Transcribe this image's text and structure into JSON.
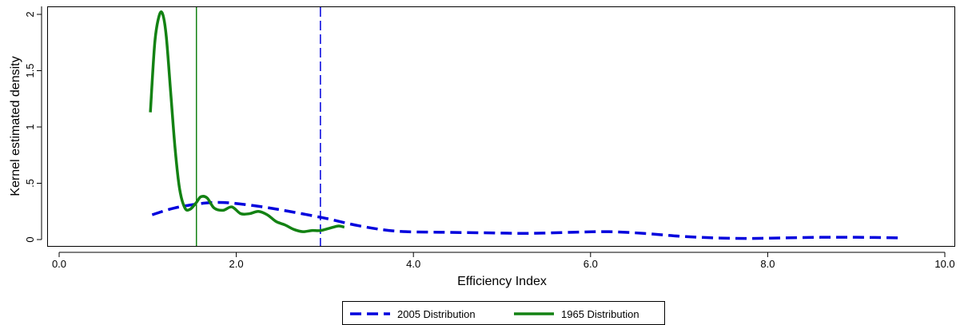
{
  "chart_data": {
    "type": "line",
    "xlabel": "Efficiency Index",
    "ylabel": "Kernel estimated density",
    "xlim": [
      0,
      10
    ],
    "ylim": [
      0,
      2
    ],
    "x_ticks": [
      {
        "value": 0,
        "label": "0.0"
      },
      {
        "value": 2,
        "label": "2.0"
      },
      {
        "value": 4,
        "label": "4.0"
      },
      {
        "value": 6,
        "label": "6.0"
      },
      {
        "value": 8,
        "label": "8.0"
      },
      {
        "value": 10,
        "label": "10.0"
      }
    ],
    "y_ticks": [
      {
        "value": 0,
        "label": "0"
      },
      {
        "value": 0.5,
        "label": ".5"
      },
      {
        "value": 1,
        "label": "1"
      },
      {
        "value": 1.5,
        "label": "1.5"
      },
      {
        "value": 2,
        "label": "2"
      }
    ],
    "grid": false,
    "legend_position": "bottom",
    "series": [
      {
        "name": "2005 Distribution",
        "color": "#0000dd",
        "style": "dashed",
        "x": [
          1.05,
          1.3,
          1.6,
          1.8,
          2.0,
          2.3,
          2.6,
          3.0,
          3.4,
          3.8,
          4.3,
          4.8,
          5.3,
          5.8,
          6.2,
          6.6,
          7.0,
          7.4,
          7.8,
          8.2,
          8.6,
          9.0,
          9.5
        ],
        "y": [
          0.22,
          0.28,
          0.32,
          0.33,
          0.32,
          0.29,
          0.25,
          0.19,
          0.12,
          0.075,
          0.065,
          0.06,
          0.055,
          0.065,
          0.07,
          0.055,
          0.03,
          0.015,
          0.01,
          0.015,
          0.02,
          0.02,
          0.015
        ]
      },
      {
        "name": "1965 Distribution",
        "color": "#138213",
        "style": "solid",
        "x": [
          1.03,
          1.08,
          1.13,
          1.17,
          1.21,
          1.26,
          1.31,
          1.36,
          1.42,
          1.48,
          1.55,
          1.6,
          1.67,
          1.75,
          1.85,
          1.95,
          2.05,
          2.15,
          2.25,
          2.35,
          2.45,
          2.55,
          2.65,
          2.75,
          2.85,
          2.95,
          3.05,
          3.15,
          3.22
        ],
        "y": [
          1.13,
          1.75,
          1.99,
          2.0,
          1.8,
          1.3,
          0.8,
          0.45,
          0.28,
          0.27,
          0.33,
          0.38,
          0.37,
          0.28,
          0.26,
          0.29,
          0.23,
          0.23,
          0.25,
          0.22,
          0.16,
          0.13,
          0.09,
          0.07,
          0.08,
          0.08,
          0.1,
          0.12,
          0.11
        ]
      }
    ],
    "reference_lines": [
      {
        "series": "2005 Distribution",
        "x": 2.95,
        "color": "#0000dd",
        "style": "dashed"
      },
      {
        "series": "1965 Distribution",
        "x": 1.55,
        "color": "#138213",
        "style": "solid"
      }
    ]
  }
}
